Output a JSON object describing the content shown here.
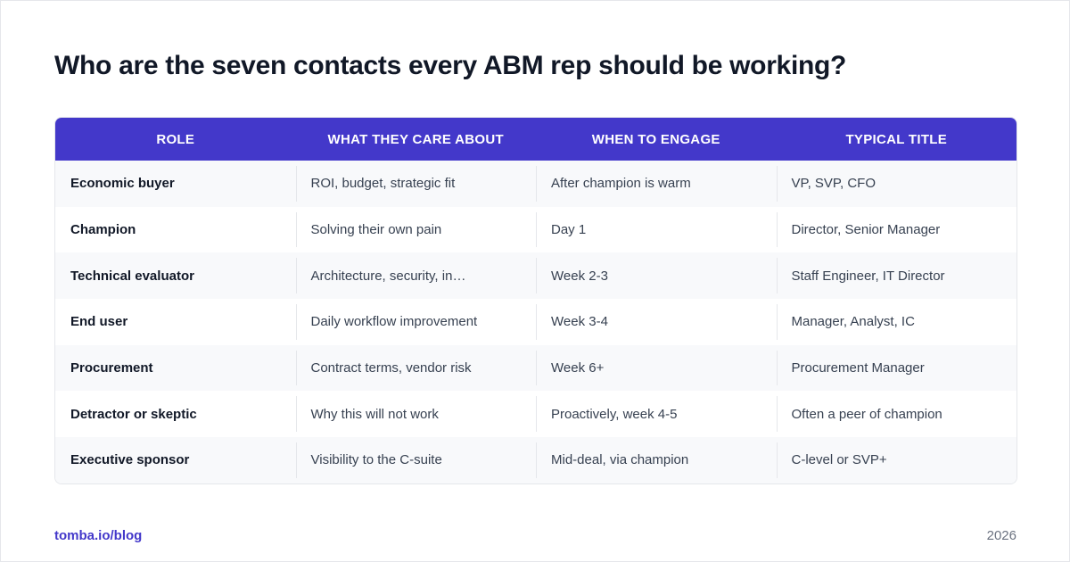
{
  "title": "Who are the seven contacts every ABM rep should be working?",
  "table": {
    "columns": [
      "ROLE",
      "WHAT THEY CARE ABOUT",
      "WHEN TO ENGAGE",
      "TYPICAL TITLE"
    ],
    "rows": [
      [
        "Economic buyer",
        "ROI, budget, strategic fit",
        "After champion is warm",
        "VP, SVP, CFO"
      ],
      [
        "Champion",
        "Solving their own pain",
        "Day 1",
        "Director, Senior Manager"
      ],
      [
        "Technical evaluator",
        "Architecture, security, in…",
        "Week 2-3",
        "Staff Engineer, IT Director"
      ],
      [
        "End user",
        "Daily workflow improvement",
        "Week 3-4",
        "Manager, Analyst, IC"
      ],
      [
        "Procurement",
        "Contract terms, vendor risk",
        "Week 6+",
        "Procurement Manager"
      ],
      [
        "Detractor or skeptic",
        "Why this will not work",
        "Proactively, week 4-5",
        "Often a peer of champion"
      ],
      [
        "Executive sponsor",
        "Visibility to the C-suite",
        "Mid-deal, via champion",
        "C-level or SVP+"
      ]
    ]
  },
  "footer": {
    "source": "tomba.io/blog",
    "year": "2026"
  }
}
